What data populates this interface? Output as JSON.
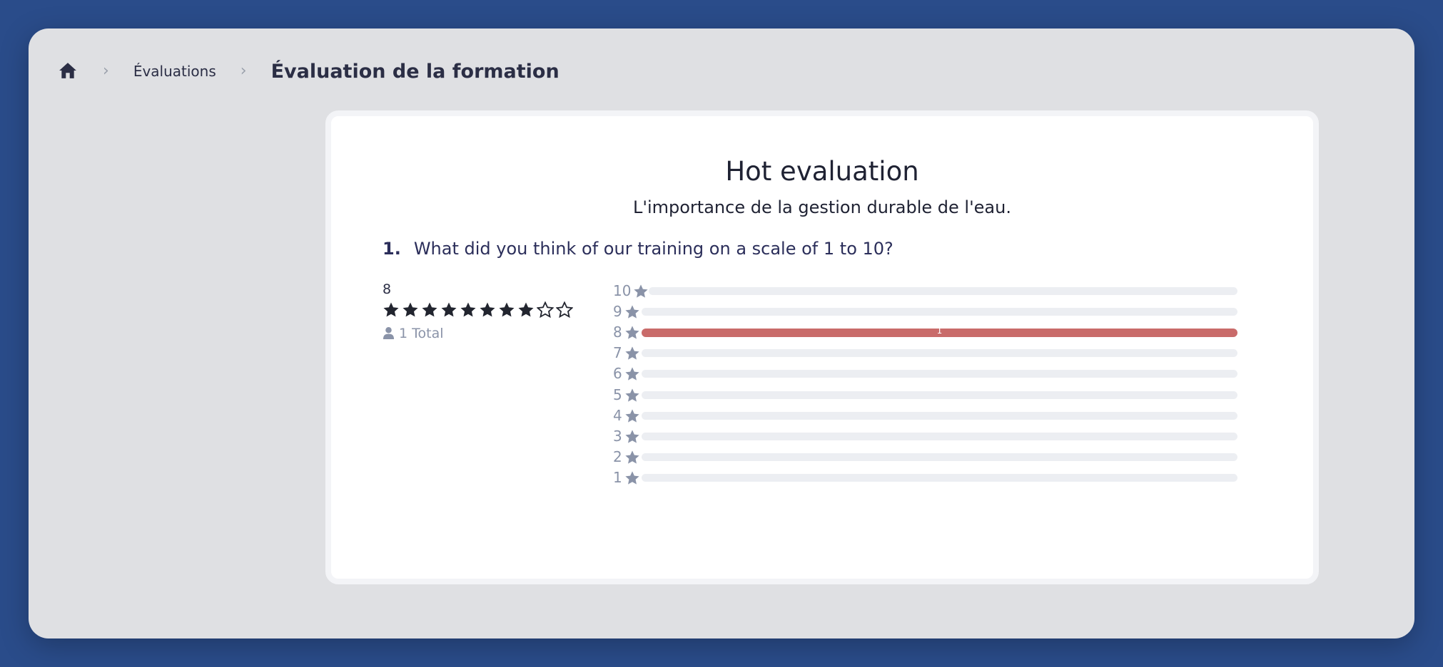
{
  "breadcrumb": {
    "home_icon": "home-icon",
    "link": "Évaluations",
    "current": "Évaluation de la formation"
  },
  "card": {
    "title": "Hot evaluation",
    "subtitle": "L'importance de la gestion durable de l'eau."
  },
  "question": {
    "number": "1.",
    "text": "What did you think of our training on a scale of 1 to 10?"
  },
  "summary": {
    "average": "8",
    "rating": 8,
    "max_rating": 10,
    "total": "1 Total"
  },
  "distribution": [
    {
      "label": "10",
      "count": 0,
      "count_text": ""
    },
    {
      "label": "9",
      "count": 0,
      "count_text": ""
    },
    {
      "label": "8",
      "count": 1,
      "count_text": "1"
    },
    {
      "label": "7",
      "count": 0,
      "count_text": ""
    },
    {
      "label": "6",
      "count": 0,
      "count_text": ""
    },
    {
      "label": "5",
      "count": 0,
      "count_text": ""
    },
    {
      "label": "4",
      "count": 0,
      "count_text": ""
    },
    {
      "label": "3",
      "count": 0,
      "count_text": ""
    },
    {
      "label": "2",
      "count": 0,
      "count_text": ""
    },
    {
      "label": "1",
      "count": 0,
      "count_text": ""
    }
  ],
  "colors": {
    "background": "#2a4c8a",
    "bar_fill": "#c96b6a",
    "bar_track": "#eceef2",
    "star_filled": "#22252f",
    "muted": "#8a93a8"
  }
}
